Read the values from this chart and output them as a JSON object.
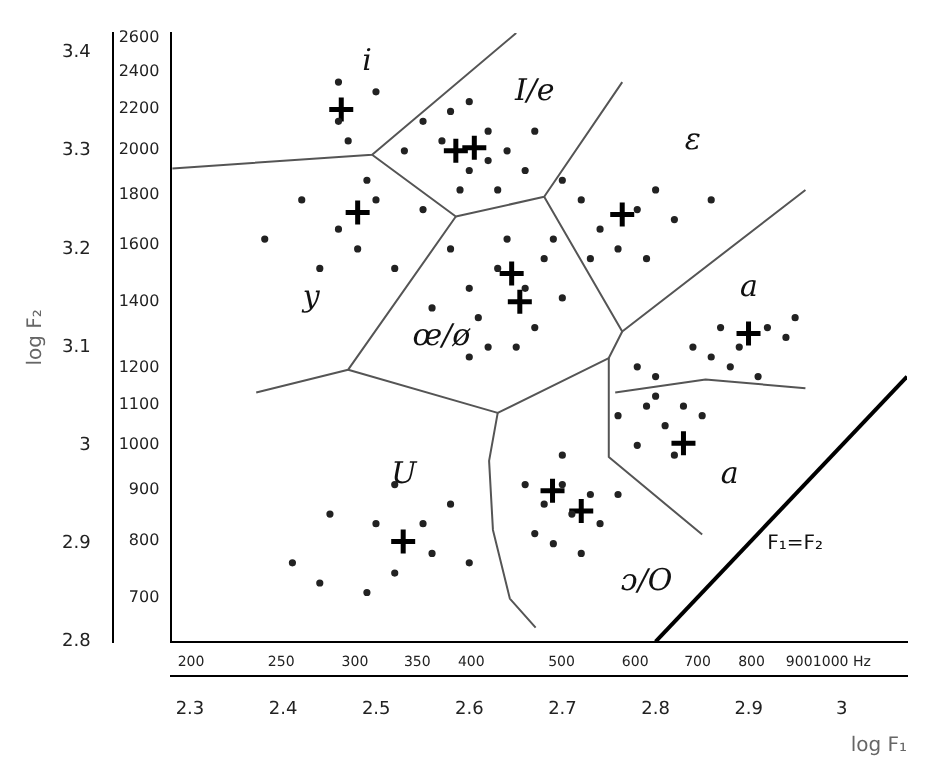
{
  "chart_data": {
    "type": "scatter",
    "x2label": "log F₁",
    "y2label": "log F₂",
    "xlim": [
      190.5,
      1175
    ],
    "xticks": [
      200,
      250,
      300,
      350,
      400,
      500,
      600,
      700,
      800,
      900,
      {
        "value": 1000,
        "label": "1000 Hz"
      }
    ],
    "ylim": [
      631,
      2630
    ],
    "yticks": [
      700,
      800,
      900,
      1000,
      1100,
      1200,
      1400,
      1600,
      1800,
      2000,
      2200,
      2400,
      2600
    ],
    "x2lim": [
      2.28,
      3.07
    ],
    "x2ticks": [
      2.3,
      2.4,
      2.5,
      2.6,
      2.7,
      2.8,
      2.9,
      3.0
    ],
    "y2lim": [
      2.8,
      3.42
    ],
    "y2ticks": [
      2.8,
      2.9,
      3.0,
      3.1,
      3.2,
      3.3,
      3.4
    ],
    "log": "xy",
    "grid": false,
    "legend": false,
    "series": [
      {
        "type": "scatter",
        "marker": "circle",
        "color": "#222222",
        "x": [
          288,
          288,
          295,
          316,
          355,
          380,
          398,
          417,
          339,
          372,
          398,
          417,
          437,
          468,
          389,
          427,
          457,
          263,
          288,
          302,
          316,
          331,
          355,
          275,
          240,
          309,
          380,
          398,
          407,
          417,
          427,
          437,
          457,
          468,
          479,
          447,
          398,
          501,
          490,
          363,
          525,
          550,
          575,
          603,
          631,
          661,
          537,
          617,
          501,
          724,
          692,
          741,
          776,
          832,
          871,
          891,
          759,
          813,
          724,
          631,
          603,
          575,
          617,
          646,
          676,
          708,
          603,
          661,
          631,
          457,
          479,
          501,
          513,
          537,
          550,
          490,
          525,
          468,
          575,
          501,
          282,
          316,
          331,
          355,
          363,
          380,
          398,
          309,
          275,
          257,
          331
        ],
        "values": [
          2344,
          2138,
          2042,
          2291,
          2138,
          2188,
          2239,
          2089,
          1995,
          2042,
          1905,
          1950,
          1995,
          2089,
          1820,
          1820,
          1905,
          1778,
          1660,
          1585,
          1778,
          1514,
          1738,
          1514,
          1622,
          1862,
          1585,
          1445,
          1349,
          1259,
          1514,
          1622,
          1445,
          1318,
          1549,
          1259,
          1230,
          1413,
          1622,
          1380,
          1778,
          1660,
          1585,
          1738,
          1820,
          1698,
          1549,
          1549,
          1862,
          1778,
          1259,
          1318,
          1259,
          1318,
          1288,
          1349,
          1202,
          1175,
          1230,
          1175,
          1202,
          1072,
          1096,
          1047,
          1096,
          1072,
          1000,
          977,
          1122,
          912,
          871,
          912,
          851,
          891,
          832,
          794,
          776,
          813,
          891,
          977,
          851,
          832,
          912,
          832,
          776,
          871,
          759,
          708,
          724,
          759,
          741
        ]
      },
      {
        "type": "scatter",
        "marker": "cross",
        "color": "#000000",
        "x": [
          290,
          302,
          385,
          403,
          581,
          442,
          451,
          794,
          676,
          338,
          489,
          525
        ],
        "values": [
          2198,
          1726,
          1995,
          2009,
          1718,
          1496,
          1400,
          1300,
          1005,
          798,
          899,
          857
        ]
      },
      {
        "type": "line",
        "color": "#555555",
        "x": [
          191,
          313,
          447
        ],
        "values": [
          1914,
          1977,
          2630
        ]
      },
      {
        "type": "line",
        "color": "#555555",
        "x": [
          313,
          385,
          479,
          581
        ],
        "values": [
          1977,
          1710,
          1791,
          2344
        ]
      },
      {
        "type": "line",
        "color": "#555555",
        "x": [
          479,
          581,
          914
        ],
        "values": [
          1791,
          1306,
          1820
        ]
      },
      {
        "type": "line",
        "color": "#555555",
        "x": [
          385,
          295,
          235
        ],
        "values": [
          1710,
          1194,
          1132
        ]
      },
      {
        "type": "line",
        "color": "#555555",
        "x": [
          295,
          427,
          562,
          581
        ],
        "values": [
          1194,
          1079,
          1227,
          1306
        ]
      },
      {
        "type": "line",
        "color": "#555555",
        "x": [
          427,
          418,
          422,
          440,
          469
        ],
        "values": [
          1079,
          964,
          820,
          698,
          652
        ]
      },
      {
        "type": "line",
        "color": "#555555",
        "x": [
          562,
          562,
          708
        ],
        "values": [
          1227,
          973,
          811
        ]
      },
      {
        "type": "line",
        "color": "#555555",
        "x": [
          571,
          714,
          914
        ],
        "values": [
          1132,
          1167,
          1143
        ]
      },
      {
        "type": "line",
        "color": "#000000",
        "x": [
          631,
          1175
        ],
        "values": [
          631,
          1175
        ]
      }
    ],
    "annotations": [
      "i",
      "I/e",
      "ε",
      "y",
      "œ/ø",
      "a",
      "a",
      "U",
      "ɔ/O",
      "F₁=F₂"
    ]
  }
}
